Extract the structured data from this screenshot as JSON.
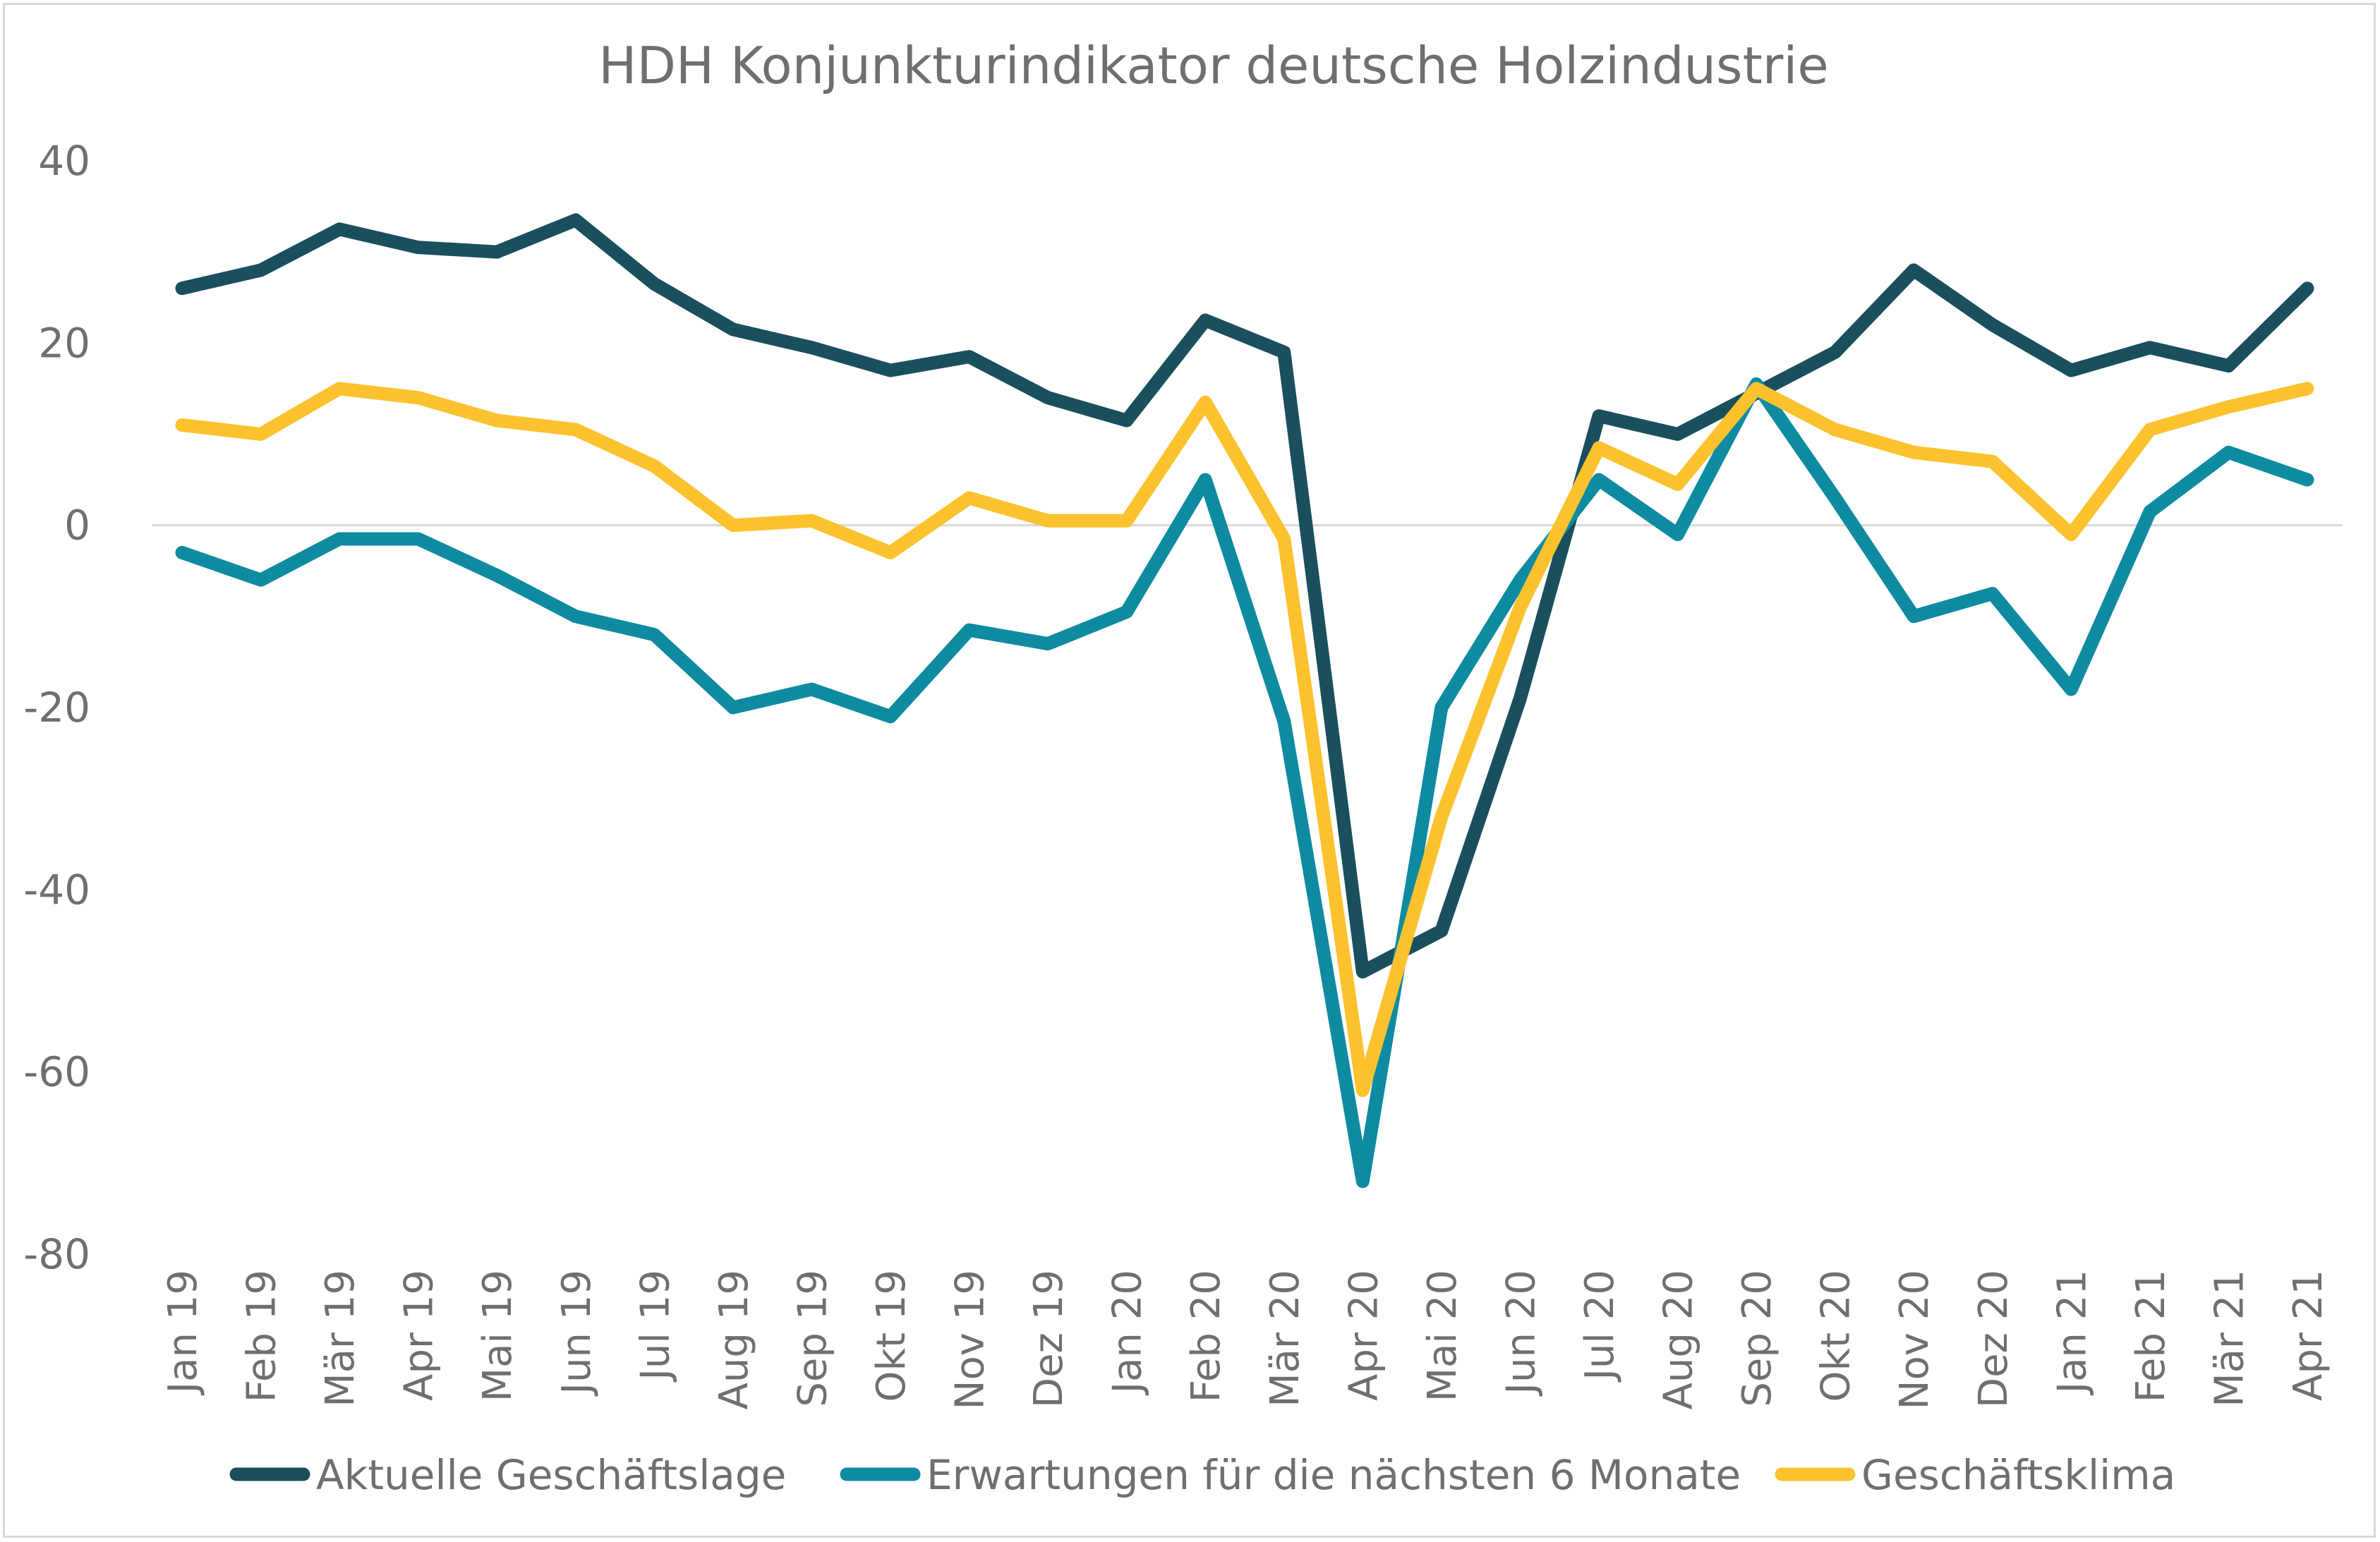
{
  "chart_data": {
    "type": "line",
    "title": "HDH Konjunkturindikator deutsche Holzindustrie",
    "xlabel": "",
    "ylabel": "",
    "ylim": [
      -80,
      40
    ],
    "yticks": [
      40,
      20,
      0,
      -20,
      -40,
      -60,
      -80
    ],
    "grid": "zero-line only",
    "legend": "bottom",
    "categories": [
      "Jan 19",
      "Feb 19",
      "Mär 19",
      "Apr 19",
      "Mai 19",
      "Jun 19",
      "Jul 19",
      "Aug 19",
      "Sep 19",
      "Okt 19",
      "Nov 19",
      "Dez 19",
      "Jan 20",
      "Feb 20",
      "Mär 20",
      "Apr 20",
      "Mai 20",
      "Jun 20",
      "Jul 20",
      "Aug 20",
      "Sep 20",
      "Okt 20",
      "Nov 20",
      "Dez 20",
      "Jan 21",
      "Feb 21",
      "Mär 21",
      "Apr 21"
    ],
    "series": [
      {
        "name": "Aktuelle Geschäftslage",
        "color": "#1a4f5e",
        "values": [
          26,
          28,
          32.5,
          30.5,
          30,
          33.5,
          26.5,
          21.5,
          19.5,
          17,
          18.5,
          14,
          11.5,
          22.5,
          19,
          -49,
          -44.5,
          -19,
          12,
          10,
          14.5,
          19,
          28,
          22,
          17,
          19.5,
          17.5,
          26
        ]
      },
      {
        "name": "Erwartungen für die nächsten 6 Monate",
        "color": "#0e8ba1",
        "values": [
          -3,
          -6,
          -1.5,
          -1.5,
          -5.5,
          -10,
          -12,
          -20,
          -18,
          -21,
          -11.5,
          -13,
          -9.5,
          5,
          -21.5,
          -72,
          -20,
          -6,
          5,
          -1,
          15.5,
          3,
          -10,
          -7.5,
          -18,
          1.5,
          8,
          5
        ]
      },
      {
        "name": "Geschäftsklima",
        "color": "#fcc22e",
        "values": [
          11,
          10,
          15,
          14,
          11.5,
          10.5,
          6.5,
          0,
          0.5,
          -3,
          3,
          0.5,
          0.5,
          13.5,
          -1.5,
          -62,
          -32,
          -9,
          8.5,
          4.5,
          15,
          10.5,
          8,
          7,
          -1,
          10.5,
          13,
          15
        ]
      }
    ]
  }
}
